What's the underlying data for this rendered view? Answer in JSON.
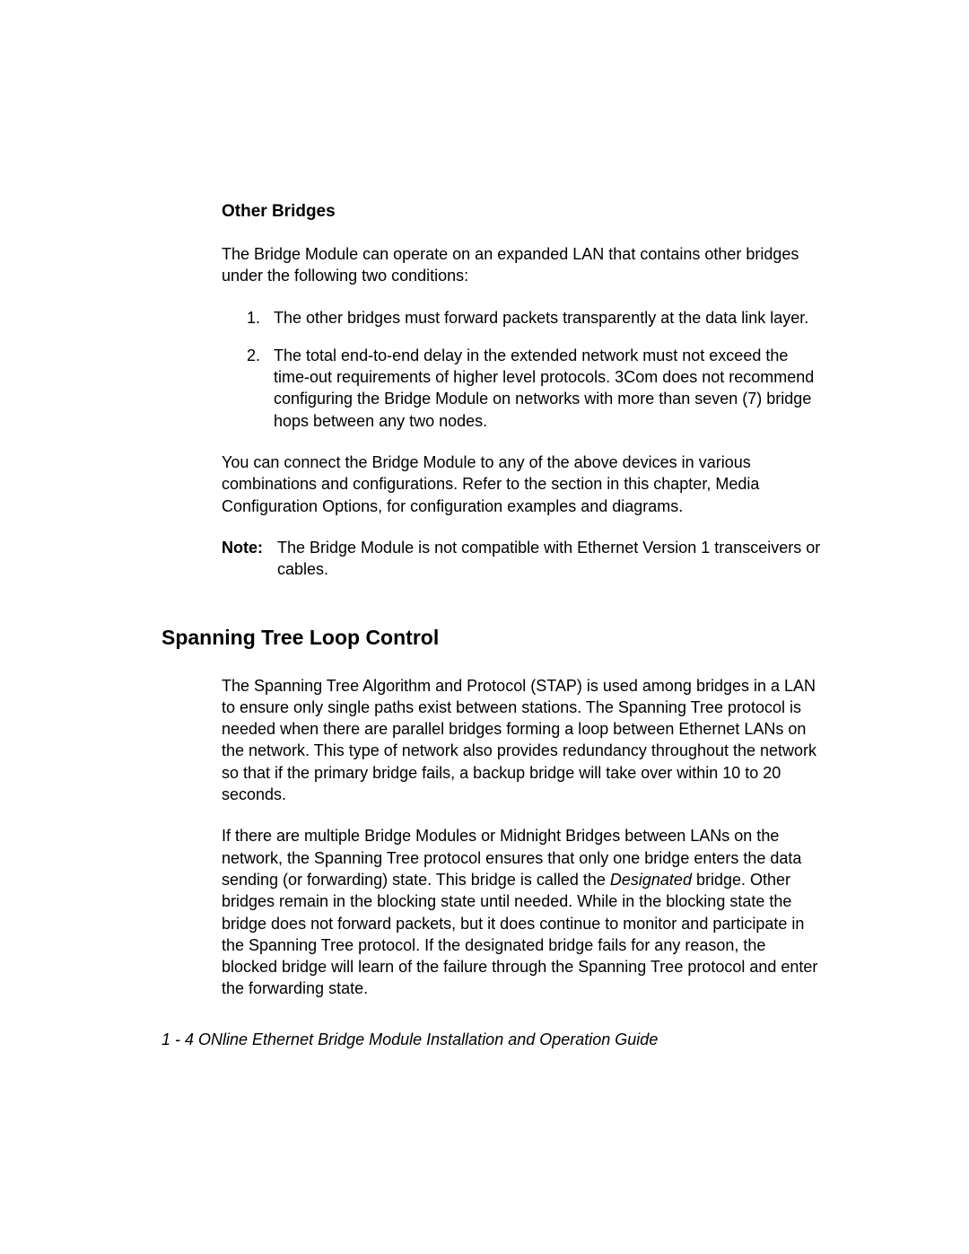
{
  "subsection_heading": "Other Bridges",
  "intro_paragraph": "The Bridge Module can operate on an expanded LAN that contains other bridges under the following two conditions:",
  "list_items": [
    {
      "number": "1.",
      "text": "The other bridges must forward packets transparently at the data link layer."
    },
    {
      "number": "2.",
      "text": "The total end-to-end delay in the extended network must not exceed the time-out requirements of higher level protocols. 3Com does not recommend configuring the Bridge Module on networks with more than seven (7) bridge hops between any two nodes."
    }
  ],
  "closing_paragraph": "You can connect the Bridge Module to any of the above devices in various combinations and configurations. Refer to the section in this chapter, Media Configuration Options, for configuration examples and diagrams.",
  "note_label": "Note:",
  "note_text": "The Bridge Module is not compatible with Ethernet Version 1 transceivers or cables.",
  "section_heading": "Spanning Tree Loop Control",
  "stap_paragraph1": "The Spanning Tree Algorithm and Protocol (STAP) is used among bridges in a LAN to ensure only single paths exist between stations. The Spanning Tree protocol is needed when there are parallel bridges forming a loop between Ethernet LANs on the network. This type of network also provides redundancy throughout the network so that if the primary bridge fails, a backup bridge will take over within 10 to 20 seconds.",
  "stap_paragraph2_part1": "If there are multiple Bridge Modules or Midnight Bridges between LANs on the network, the Spanning Tree protocol ensures that only one bridge enters the data sending (or forwarding) state. This bridge is called the ",
  "stap_paragraph2_italic": "Designated",
  "stap_paragraph2_part2": " bridge. Other bridges remain in the blocking state until needed. While in the blocking state the bridge does not forward packets, but it does continue to monitor and participate in the Spanning Tree protocol. If the designated bridge fails for any reason, the blocked bridge will learn of the failure through the Spanning Tree protocol and enter the forwarding state.",
  "footer_text": "1 - 4  ONline Ethernet Bridge Module Installation and Operation Guide"
}
